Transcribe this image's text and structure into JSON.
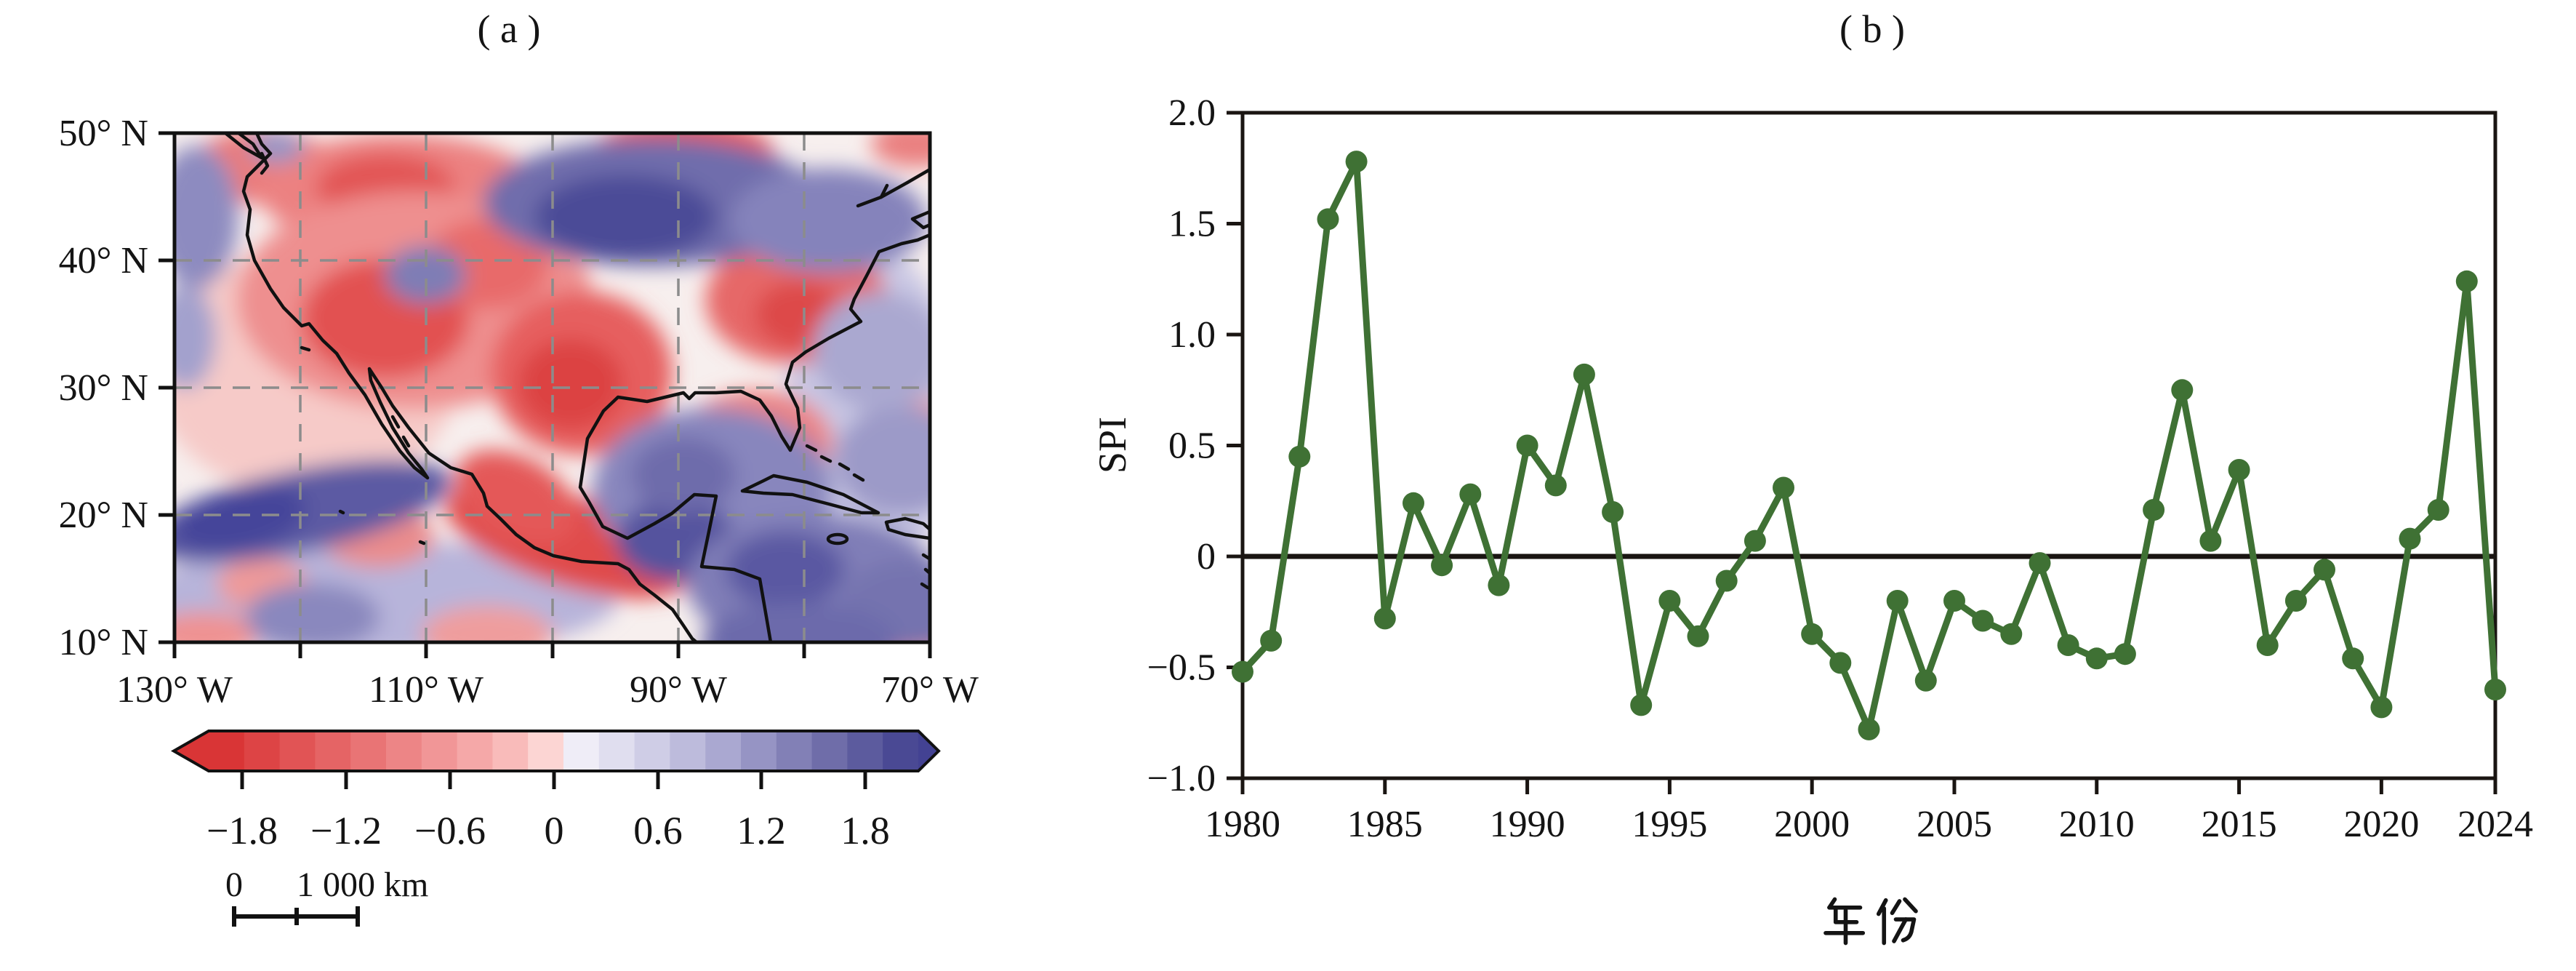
{
  "figure": {
    "panel_a": {
      "title": "( a )",
      "lat_tick_labels": [
        "50° N",
        "40° N",
        "30° N",
        "20° N",
        "10° N"
      ],
      "lon_tick_labels": [
        "130° W",
        "110° W",
        "90° W",
        "70° W"
      ],
      "colorbar": {
        "tick_labels": [
          "−1.8",
          "−1.2",
          "−0.6",
          "0",
          "0.6",
          "1.2",
          "1.8"
        ],
        "segment_colors": [
          "#d93536",
          "#dd4445",
          "#e15455",
          "#e56465",
          "#e97475",
          "#ed8586",
          "#f19697",
          "#f5a8a8",
          "#f9bbba",
          "#fcd5d3",
          "#efedf7",
          "#e0deef",
          "#cfcde6",
          "#bdbbdc",
          "#aaa8d1",
          "#9694c4",
          "#8280b6",
          "#6f6da9",
          "#5c5b9e",
          "#4a4994"
        ],
        "left_arrow_color": "#d93536",
        "right_arrow_color": "#434293"
      },
      "scalebar": {
        "zero_label": "0",
        "distance_label": "1 000 km"
      }
    },
    "panel_b": {
      "title": "( b )",
      "ylabel": "SPI",
      "xlabel": "年 份",
      "ytick_labels": [
        "2.0",
        "1.5",
        "1.0",
        "0.5",
        "0",
        "−0.5",
        "−1.0"
      ],
      "xtick_labels": [
        "1980",
        "1985",
        "1990",
        "1995",
        "2000",
        "2005",
        "2010",
        "2015",
        "2020",
        "2024"
      ],
      "line_color": "#3f7134",
      "zero_line_color": "#1a1512"
    }
  },
  "chart_data": {
    "type": "line",
    "title": "( b )",
    "xlabel": "年 份",
    "ylabel": "SPI",
    "x": [
      1980,
      1981,
      1982,
      1983,
      1984,
      1985,
      1986,
      1987,
      1988,
      1989,
      1990,
      1991,
      1992,
      1993,
      1994,
      1995,
      1996,
      1997,
      1998,
      1999,
      2000,
      2001,
      2002,
      2003,
      2004,
      2005,
      2006,
      2007,
      2008,
      2009,
      2010,
      2011,
      2012,
      2013,
      2014,
      2015,
      2016,
      2017,
      2018,
      2019,
      2020,
      2021,
      2022,
      2023,
      2024
    ],
    "values": [
      -0.52,
      -0.38,
      0.45,
      1.52,
      1.78,
      -0.28,
      0.24,
      -0.04,
      0.28,
      -0.13,
      0.5,
      0.32,
      0.82,
      0.2,
      -0.67,
      -0.2,
      -0.36,
      -0.11,
      0.07,
      0.31,
      -0.35,
      -0.48,
      -0.78,
      -0.2,
      -0.56,
      -0.2,
      -0.29,
      -0.35,
      -0.03,
      -0.4,
      -0.46,
      -0.44,
      0.21,
      0.75,
      0.07,
      0.39,
      -0.4,
      -0.2,
      -0.06,
      -0.46,
      -0.68,
      0.08,
      0.21,
      1.24,
      -0.6
    ],
    "xlim": [
      1980,
      2024
    ],
    "ylim": [
      -1.0,
      2.0
    ],
    "xticks": [
      1980,
      1985,
      1990,
      1995,
      2000,
      2005,
      2010,
      2015,
      2020,
      2024
    ],
    "yticks": [
      2.0,
      1.5,
      1.0,
      0.5,
      0,
      -0.5,
      -1.0
    ],
    "grid": false,
    "legend": "none",
    "marker": "circle",
    "series_color": "#3f7134",
    "baseline": 0
  }
}
